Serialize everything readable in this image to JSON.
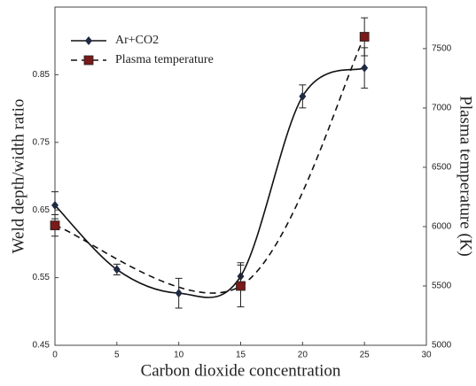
{
  "chart_data": {
    "type": "line",
    "x_label": "Carbon dioxide concentration",
    "y_label": "Weld depth/width ratio",
    "y2_label": "Plasma temperature (K)",
    "xlim": [
      0,
      30
    ],
    "xticks": [
      0,
      5,
      10,
      15,
      20,
      25,
      30
    ],
    "ylim": [
      0.45,
      0.95
    ],
    "yticks": [
      0.45,
      0.55,
      0.65,
      0.75,
      0.85
    ],
    "y2lim": [
      5000,
      7850
    ],
    "y2ticks": [
      5000,
      5500,
      6000,
      6500,
      7000,
      7500
    ],
    "grid": false,
    "legend": "upper left",
    "series": [
      {
        "name": "Ar+CO2",
        "color": "#1f2a44",
        "marker": "diamond",
        "dash": false,
        "x": [
          0,
          5,
          10,
          15,
          20,
          25
        ],
        "values": [
          0.657,
          0.562,
          0.527,
          0.552,
          0.818,
          0.86
        ],
        "errors": [
          0.02,
          0.008,
          0.022,
          0.02,
          0.017,
          0.03
        ]
      },
      {
        "name": "Plasma temperature",
        "color": "#7a1a1a",
        "marker": "square",
        "dash": true,
        "axis": "y2",
        "x": [
          0,
          15,
          25
        ],
        "values": [
          6010,
          5500,
          7600
        ],
        "errors": [
          90,
          176,
          160
        ]
      }
    ]
  }
}
